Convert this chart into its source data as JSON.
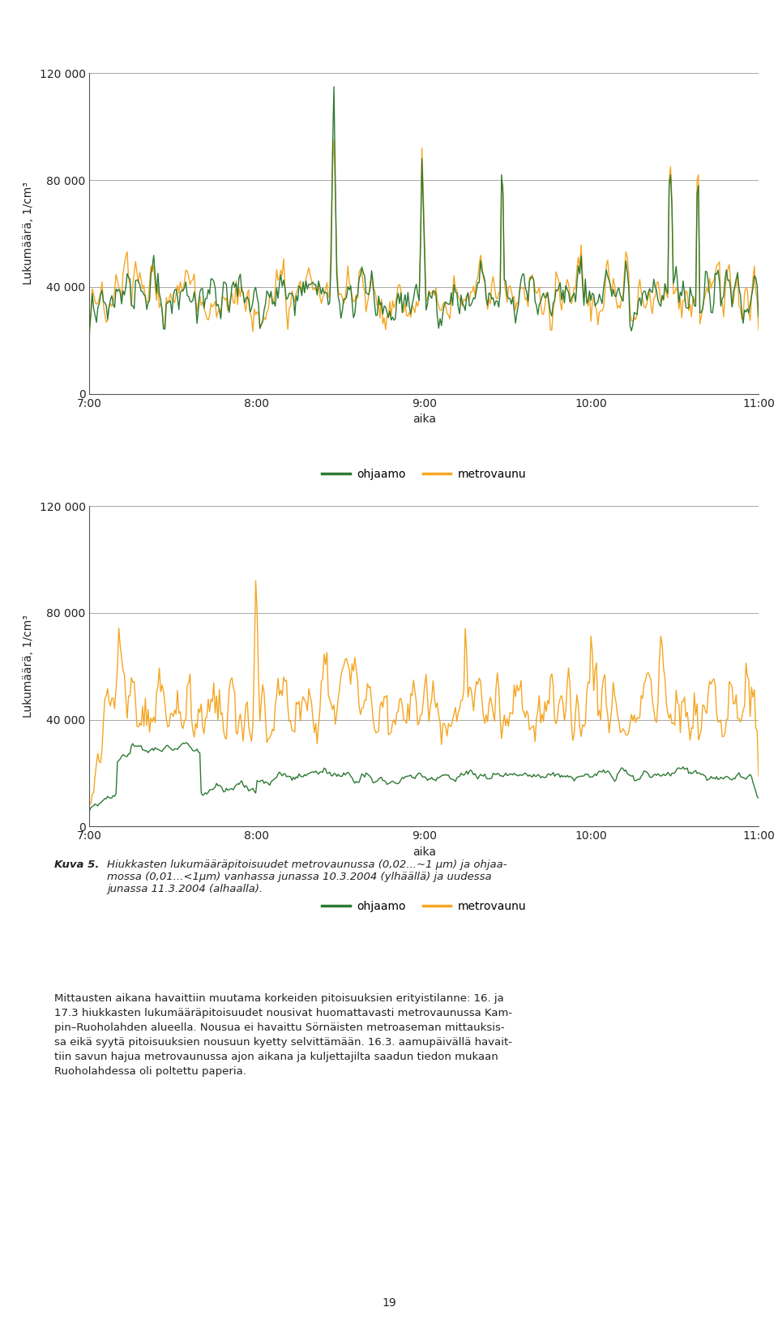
{
  "chart1": {
    "ylim": [
      0,
      120000
    ],
    "yticks": [
      0,
      40000,
      80000,
      120000
    ],
    "ytick_labels": [
      "0",
      "40 000",
      "80 000",
      "120 000"
    ],
    "ylabel": "Lukumäärä, 1/cm³",
    "xlabel": "aika",
    "xtick_labels": [
      "7:00",
      "8:00",
      "9:00",
      "10:00",
      "11:00"
    ],
    "color_green": "#2d7a34",
    "color_orange": "#f5a623",
    "legend_green": "ohjaamo",
    "legend_orange": "metrovaunu"
  },
  "chart2": {
    "ylim": [
      0,
      120000
    ],
    "yticks": [
      0,
      40000,
      80000,
      120000
    ],
    "ytick_labels": [
      "0",
      "40 000",
      "80 000",
      "120 000"
    ],
    "ylabel": "Lukumäärä, 1/cm³",
    "xlabel": "aika",
    "xtick_labels": [
      "7:00",
      "8:00",
      "9:00",
      "10:00",
      "11:00"
    ],
    "color_green": "#2d7a34",
    "color_orange": "#f5a623",
    "legend_green": "ohjaamo",
    "legend_orange": "metrovaunu"
  },
  "caption_bold": "Kuva 5.",
  "caption_rest": "  Hiukkasten lukumääräpitoisuudet metrovaunussa (0,02...~1 μm) ja ohjaa-\nmossa (0,01...<1μm) vanhassa junassa 10.3.2004 (ylhäällä) ja uudessa\njunassa 11.3.2004 (alhaalla).",
  "body_text": "Mittausten aikana havaittiin muutama korkeiden pitoisuuksien erityistilanne: 16. ja\n17.3 hiukkasten lukumääräpitoisuudet nousivat huomattavasti metrovaunussa Kam-\npin–Ruoholahden alueella. Nousua ei havaittu Sörnäisten metroaseman mittauksis-\nsa eikä syytä pitoisuuksien nousuun kyetty selvittämään. 16.3. aamupäivällä havait-\ntiin savun hajua metrovaunussa ajon aikana ja kuljettajilta saadun tiedon mukaan\nRuoholahdessa oli poltettu paperia.",
  "page_number": "19",
  "background_color": "#ffffff",
  "grid_color": "#999999",
  "line_width": 1.0
}
